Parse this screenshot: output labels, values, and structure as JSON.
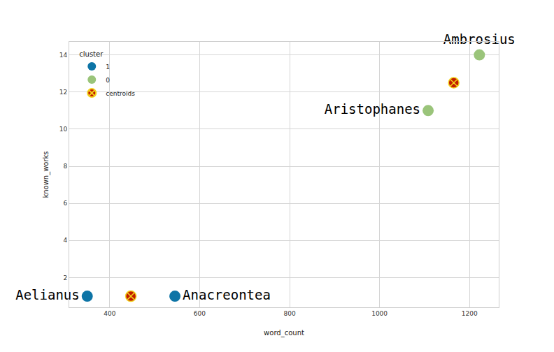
{
  "chart_data": {
    "type": "scatter",
    "xlabel": "word_count",
    "ylabel": "known_works",
    "legend_title": "cluster",
    "legend": "upper left",
    "grid": true,
    "xlim": [
      310,
      1265
    ],
    "ylim": [
      0.4,
      14.7
    ],
    "xticks": [
      400,
      600,
      800,
      1000,
      1200
    ],
    "yticks": [
      2,
      4,
      6,
      8,
      10,
      12,
      14
    ],
    "series": [
      {
        "name": "1",
        "color": "#0d74a6",
        "marker": "circle",
        "x": [
          350,
          545
        ],
        "values": [
          1,
          1
        ],
        "labels": [
          "Aelianus",
          "Anacreontea"
        ]
      },
      {
        "name": "0",
        "color": "#9ac47a",
        "marker": "circle",
        "x": [
          1108,
          1222
        ],
        "values": [
          11,
          14
        ],
        "labels": [
          "Aristophanes",
          "Ambrosius"
        ]
      },
      {
        "name": "centroids",
        "color": "#c21d00",
        "marker": "circle-x",
        "x": [
          447,
          1165
        ],
        "values": [
          1,
          12.5
        ]
      }
    ]
  }
}
